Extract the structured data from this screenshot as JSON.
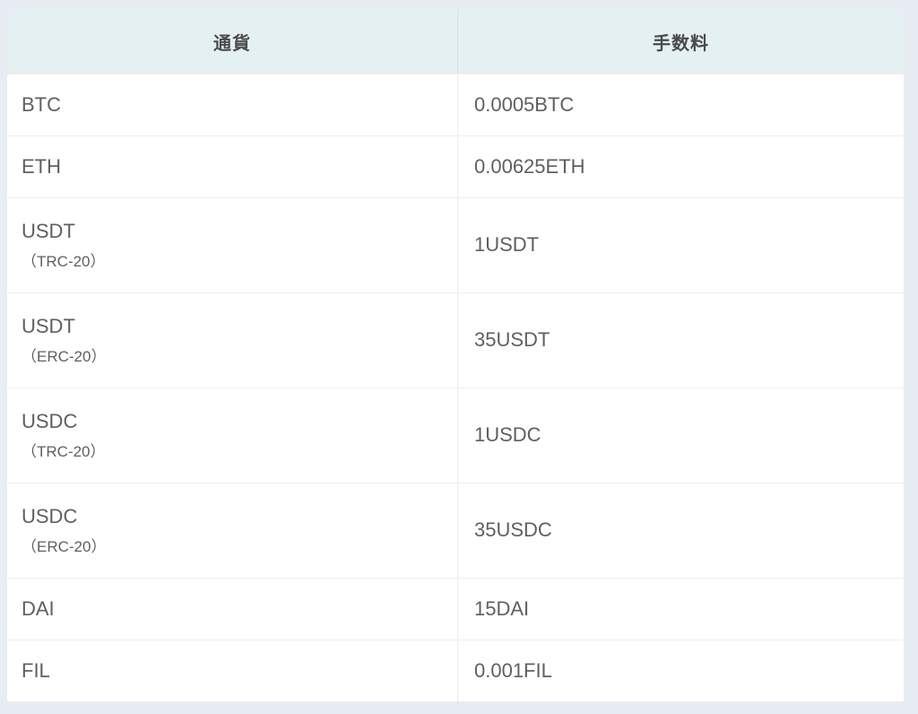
{
  "page": {
    "background_color": "#e8ecf3"
  },
  "chart_data": {
    "type": "table",
    "columns": [
      "通貨",
      "手数料"
    ],
    "rows": [
      [
        "BTC",
        "0.0005BTC"
      ],
      [
        "ETH",
        "0.00625ETH"
      ],
      [
        "USDT（TRC-20）",
        "1USDT"
      ],
      [
        "USDT（ERC-20）",
        "35USDT"
      ],
      [
        "USDC（TRC-20）",
        "1USDC"
      ],
      [
        "USDC（ERC-20）",
        "35USDC"
      ],
      [
        "DAI",
        "15DAI"
      ],
      [
        "FIL",
        "0.001FIL"
      ]
    ]
  },
  "table": {
    "header": {
      "currency_label": "通貨",
      "fee_label": "手数料"
    },
    "colors": {
      "header_background": "#e4f0f2",
      "row_background": "#ffffff",
      "page_background": "#e8ecf3",
      "text": "#5f5f5f",
      "header_text": "#4a4a4a",
      "separator": "#efeff0"
    },
    "rows": [
      {
        "currency": "BTC",
        "network": "",
        "fee": "0.0005BTC"
      },
      {
        "currency": "ETH",
        "network": "",
        "fee": "0.00625ETH"
      },
      {
        "currency": "USDT",
        "network": "（TRC-20）",
        "fee": "1USDT"
      },
      {
        "currency": "USDT",
        "network": "（ERC-20）",
        "fee": "35USDT"
      },
      {
        "currency": "USDC",
        "network": "（TRC-20）",
        "fee": "1USDC"
      },
      {
        "currency": "USDC",
        "network": "（ERC-20）",
        "fee": "35USDC"
      },
      {
        "currency": "DAI",
        "network": "",
        "fee": "15DAI"
      },
      {
        "currency": "FIL",
        "network": "",
        "fee": "0.001FIL"
      }
    ]
  }
}
